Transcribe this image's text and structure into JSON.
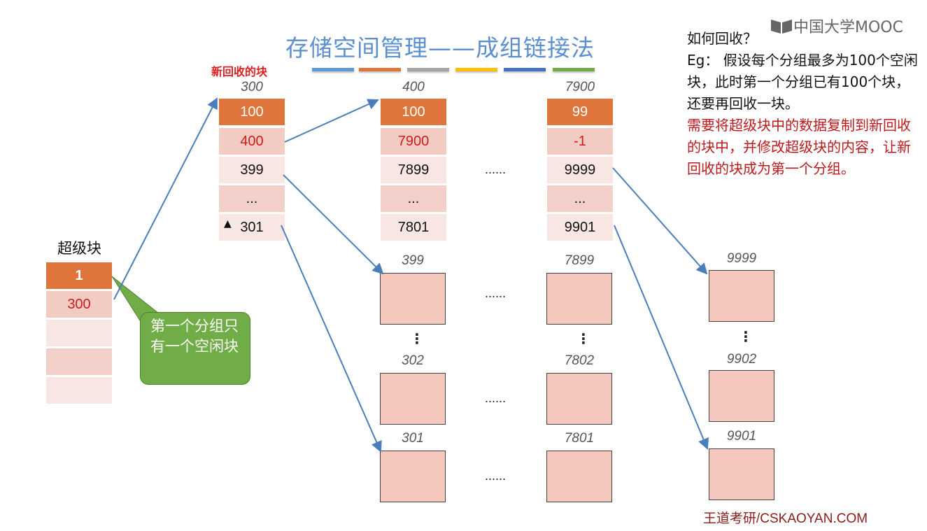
{
  "title": "存储空间管理——成组链接法",
  "accent_bars": [
    "#5b9bd5",
    "#e0753c",
    "#a5a5a5",
    "#ffc000",
    "#4472c4",
    "#70ad47"
  ],
  "new_block_label": "新回收的块",
  "groups": [
    {
      "label": "300",
      "cells": [
        "100",
        "400",
        "399",
        "...",
        "301"
      ]
    },
    {
      "label": "400",
      "cells": [
        "100",
        "7900",
        "7899",
        "...",
        "7801"
      ]
    },
    {
      "label": "7900",
      "cells": [
        "99",
        "-1",
        "9999",
        "...",
        "9901"
      ]
    }
  ],
  "ellipsis": "......",
  "vdots": "⋮",
  "superblock": {
    "label": "超级块",
    "cells": [
      "1",
      "300",
      "",
      "",
      ""
    ]
  },
  "callout": "第一个分组只有一个空闲块",
  "blocks": {
    "col1": [
      "399",
      "302",
      "301"
    ],
    "col2": [
      "7899",
      "7802",
      "7801"
    ],
    "col3": [
      "9999",
      "9902",
      "9901"
    ]
  },
  "right_text": {
    "q": "如何回收？",
    "l1": "Eg： 假设每个分组最多为100个空闲块，此时第一个分组已有100个块，还要再回收一块。",
    "l2": "需要将超级块中的数据复制到新回收的块中，并修改超级块的内容，让新回收的块成为第一个分组。"
  },
  "logo": "中国大学MOOC",
  "footer": "王道考研/CSKAOYAN.COM",
  "colors": {
    "arrow": "#4a7ebb",
    "orange": "#e0753c",
    "green": "#70ad47",
    "red": "#c0181c"
  }
}
